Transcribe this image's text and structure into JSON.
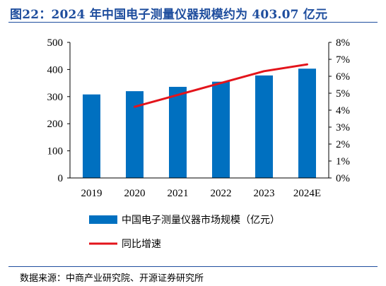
{
  "title": "图22：2024 年中国电子测量仪器规模约为 403.07 亿元",
  "source": "数据来源：中商产业研究院、开源证券研究所",
  "colors": {
    "bar": "#0070c0",
    "line": "#e3141b",
    "title": "#1f4e9e"
  },
  "chart_data": {
    "type": "bar",
    "categories": [
      "2019",
      "2020",
      "2021",
      "2022",
      "2023",
      "2024E"
    ],
    "series": [
      {
        "name": "中国电子测量仪器市场规模（亿元）",
        "type": "bar",
        "axis": "left",
        "values": [
          308,
          320,
          336,
          355,
          378,
          403.07
        ]
      },
      {
        "name": "同比增速",
        "type": "line",
        "axis": "right",
        "values": [
          null,
          4.2,
          4.9,
          5.6,
          6.3,
          6.7
        ]
      }
    ],
    "ylim": [
      0,
      500
    ],
    "yticks": [
      "0",
      "100",
      "200",
      "300",
      "400",
      "500"
    ],
    "y2lim": [
      0,
      8
    ],
    "y2ticks": [
      "0%",
      "1%",
      "2%",
      "3%",
      "4%",
      "5%",
      "6%",
      "7%",
      "8%"
    ],
    "grid": false,
    "legend": "bottom"
  }
}
